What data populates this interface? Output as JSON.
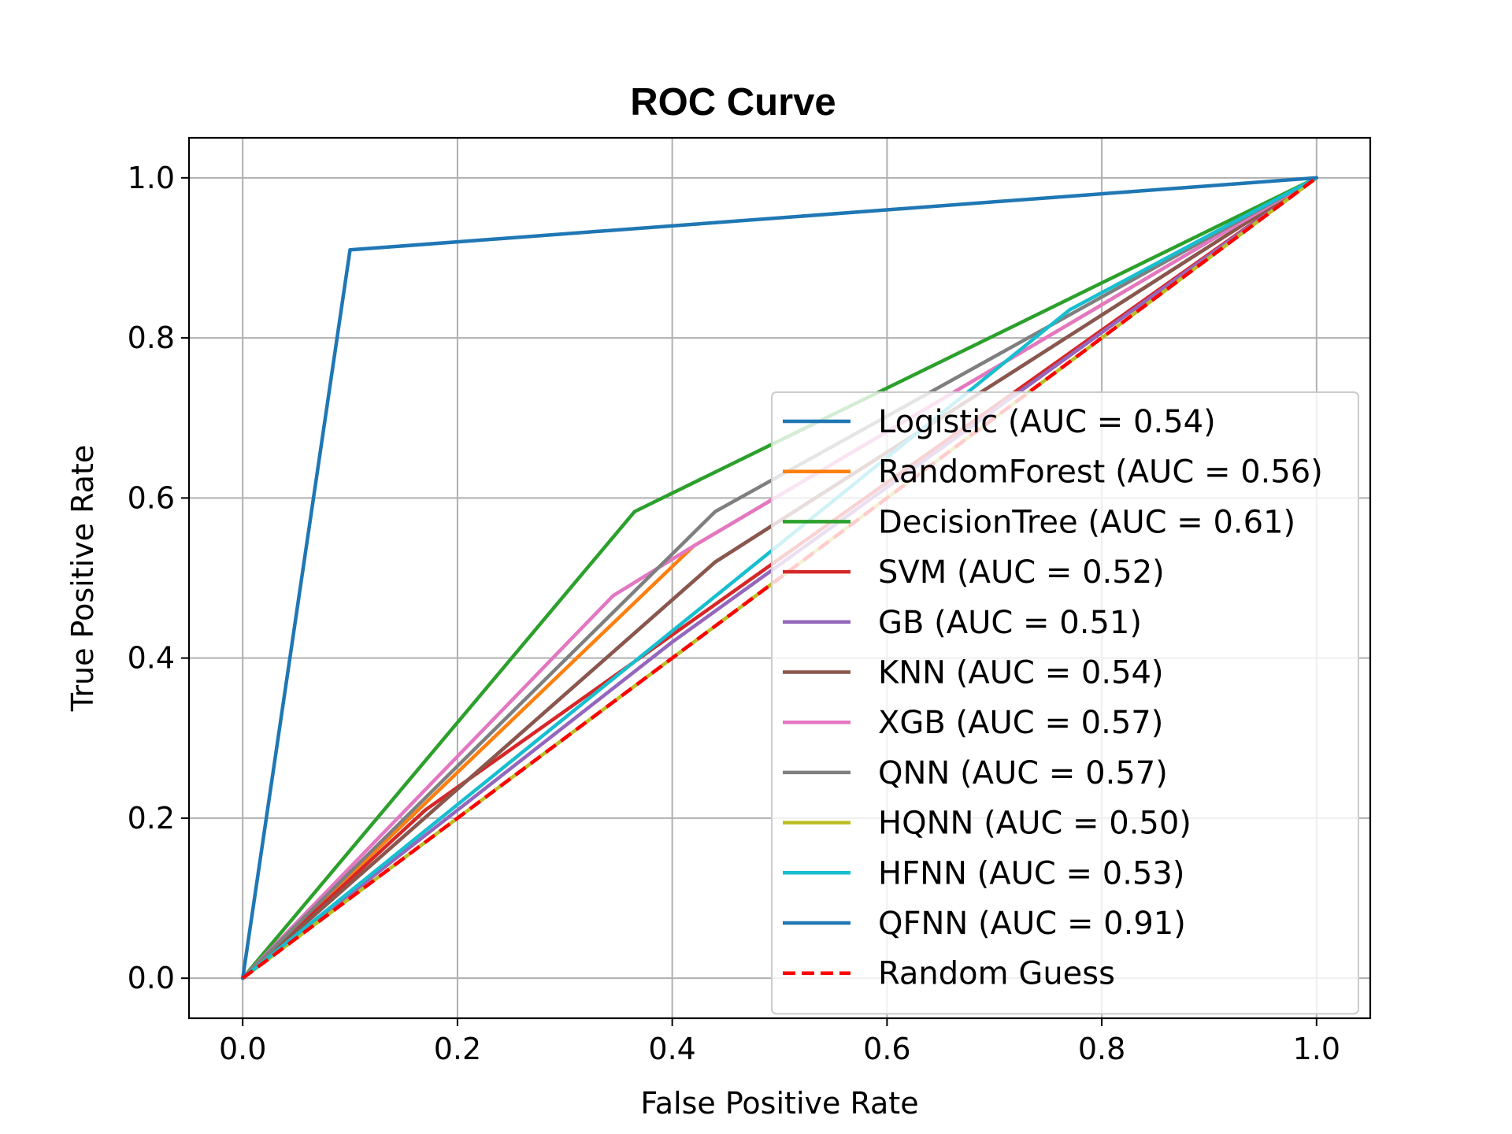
{
  "chart_data": {
    "type": "line",
    "title": "ROC Curve",
    "xlabel": "False Positive Rate",
    "ylabel": "True Positive Rate",
    "xlim": [
      -0.05,
      1.05
    ],
    "ylim": [
      -0.05,
      1.05
    ],
    "xticks": [
      0.0,
      0.2,
      0.4,
      0.6,
      0.8,
      1.0
    ],
    "yticks": [
      0.0,
      0.2,
      0.4,
      0.6,
      0.8,
      1.0
    ],
    "xtick_labels": [
      "0.0",
      "0.2",
      "0.4",
      "0.6",
      "0.8",
      "1.0"
    ],
    "ytick_labels": [
      "0.0",
      "0.2",
      "0.4",
      "0.6",
      "0.8",
      "1.0"
    ],
    "grid": true,
    "legend_position": "lower-right",
    "series": [
      {
        "name": "Logistic (AUC = 0.54)",
        "color": "#1f77b4",
        "dash": false,
        "points": [
          [
            0,
            0
          ],
          [
            0.44,
            0.52
          ],
          [
            1,
            1
          ]
        ]
      },
      {
        "name": "RandomForest (AUC = 0.56)",
        "color": "#ff7f0e",
        "dash": false,
        "points": [
          [
            0,
            0
          ],
          [
            0.42,
            0.54
          ],
          [
            1,
            1
          ]
        ]
      },
      {
        "name": "DecisionTree (AUC = 0.61)",
        "color": "#2ca02c",
        "dash": false,
        "points": [
          [
            0,
            0
          ],
          [
            0.365,
            0.583
          ],
          [
            1,
            1
          ]
        ]
      },
      {
        "name": "SVM (AUC = 0.52)",
        "color": "#d62728",
        "dash": false,
        "points": [
          [
            0,
            0
          ],
          [
            0.17,
            0.21
          ],
          [
            1,
            1
          ]
        ]
      },
      {
        "name": "GB (AUC = 0.51)",
        "color": "#9467bd",
        "dash": false,
        "points": [
          [
            0,
            0
          ],
          [
            0.4,
            0.42
          ],
          [
            1,
            1
          ]
        ]
      },
      {
        "name": "KNN (AUC = 0.54)",
        "color": "#8c564b",
        "dash": false,
        "points": [
          [
            0,
            0
          ],
          [
            0.44,
            0.52
          ],
          [
            1,
            1
          ]
        ]
      },
      {
        "name": "XGB (AUC = 0.57)",
        "color": "#e377c2",
        "dash": false,
        "points": [
          [
            0,
            0
          ],
          [
            0.345,
            0.478
          ],
          [
            0.42,
            0.54
          ],
          [
            1,
            1
          ]
        ]
      },
      {
        "name": "QNN (AUC = 0.57)",
        "color": "#7f7f7f",
        "dash": false,
        "points": [
          [
            0,
            0
          ],
          [
            0.44,
            0.583
          ],
          [
            1,
            1
          ]
        ]
      },
      {
        "name": "HQNN (AUC = 0.50)",
        "color": "#bcbd22",
        "dash": false,
        "points": [
          [
            0,
            0
          ],
          [
            1,
            1
          ]
        ]
      },
      {
        "name": "HFNN (AUC = 0.53)",
        "color": "#17becf",
        "dash": false,
        "points": [
          [
            0,
            0
          ],
          [
            0.77,
            0.835
          ],
          [
            1,
            1
          ]
        ]
      },
      {
        "name": "QFNN (AUC = 0.91)",
        "color": "#1f77b4",
        "dash": false,
        "points": [
          [
            0,
            0
          ],
          [
            0.1,
            0.91
          ],
          [
            1,
            1
          ]
        ]
      },
      {
        "name": "Random Guess",
        "color": "#ff0000",
        "dash": true,
        "points": [
          [
            0,
            0
          ],
          [
            1,
            1
          ]
        ]
      }
    ]
  }
}
